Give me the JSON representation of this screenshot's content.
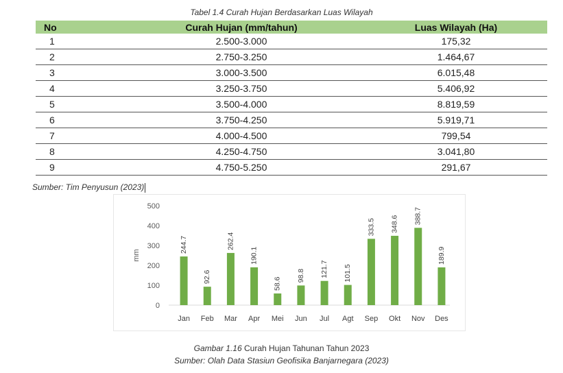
{
  "table": {
    "caption": "Tabel 1.4 Curah Hujan Berdasarkan Luas Wilayah",
    "headers": [
      "No",
      "Curah Hujan (mm/tahun)",
      "Luas Wilayah (Ha)"
    ],
    "rows": [
      [
        "1",
        "2.500-3.000",
        "175,32"
      ],
      [
        "2",
        "2.750-3.250",
        "1.464,67"
      ],
      [
        "3",
        "3.000-3.500",
        "6.015,48"
      ],
      [
        "4",
        "3.250-3.750",
        "5.406,92"
      ],
      [
        "5",
        "3.500-4.000",
        "8.819,59"
      ],
      [
        "6",
        "3.750-4.250",
        "5.919,71"
      ],
      [
        "7",
        "4.000-4.500",
        "799,54"
      ],
      [
        "8",
        "4.250-4.750",
        "3.041,80"
      ],
      [
        "9",
        "4.750-5.250",
        "291,67"
      ]
    ],
    "source": "Sumber: Tim Penyusun (2023)"
  },
  "chart_data": {
    "type": "bar",
    "categories": [
      "Jan",
      "Feb",
      "Mar",
      "Apr",
      "Mei",
      "Jun",
      "Jul",
      "Agt",
      "Sep",
      "Okt",
      "Nov",
      "Des"
    ],
    "values": [
      244.7,
      92.6,
      262.4,
      190.1,
      58.6,
      98.8,
      121.7,
      101.5,
      333.5,
      348.6,
      388.7,
      189.9
    ],
    "value_labels": [
      "244.7",
      "92.6",
      "262.4",
      "190.1",
      "58.6",
      "98.8",
      "121.7",
      "101.5",
      "333.5",
      "348.6",
      "388.7",
      "189.9"
    ],
    "ylabel": "mm",
    "yticks": [
      "0",
      "100",
      "200",
      "300",
      "400",
      "500"
    ],
    "ylim": [
      0,
      500
    ],
    "grid": false,
    "bar_color": "#70ad47"
  },
  "figure": {
    "caption_prefix": "Gambar 1.16",
    "caption_text": " Curah Hujan Tahunan Tahun 2023",
    "source": "Sumber: Olah Data Stasiun Geofisika Banjarnegara (2023)"
  }
}
